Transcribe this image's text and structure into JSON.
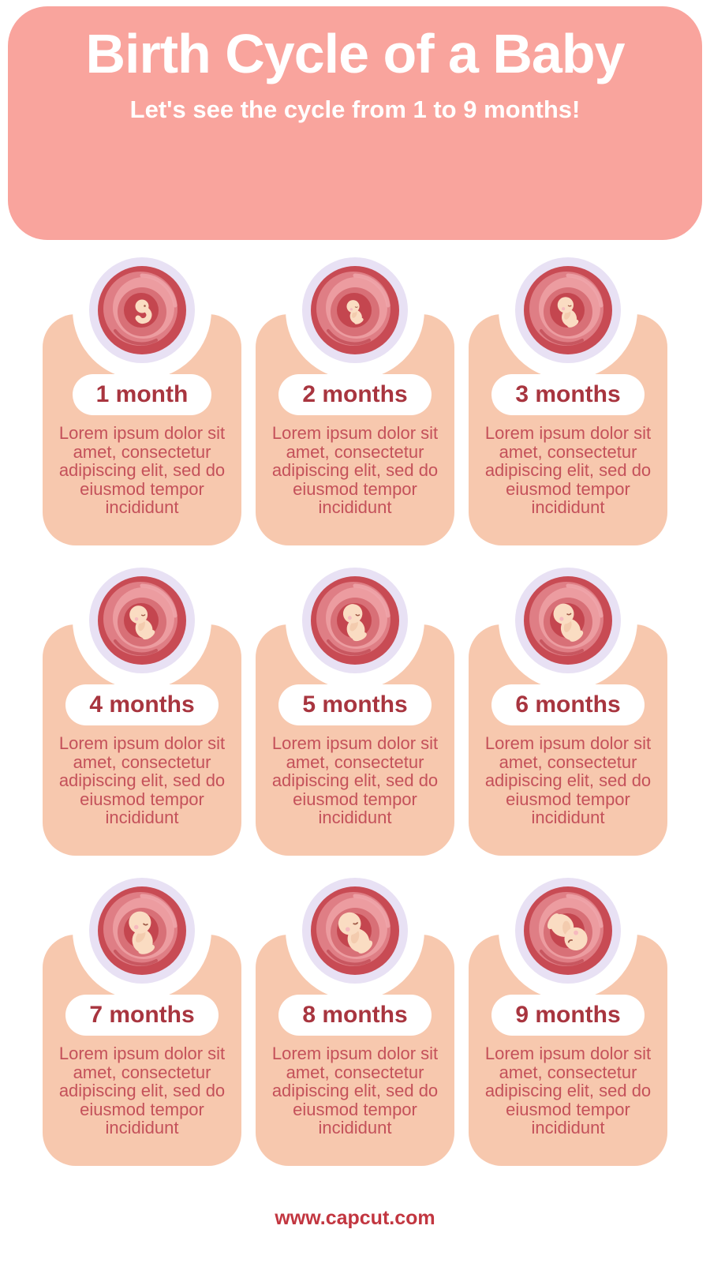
{
  "header": {
    "title": "Birth Cycle of a Baby",
    "subtitle": "Let's see the cycle from 1 to 9 months!"
  },
  "cards": [
    {
      "month": 1,
      "label": "1 month",
      "icon": "embryo-month-1-icon",
      "description": "Lorem ipsum dolor sit amet, consectetur adipiscing elit, sed do eiusmod tempor incididunt"
    },
    {
      "month": 2,
      "label": "2 months",
      "icon": "fetus-month-2-icon",
      "description": "Lorem ipsum dolor sit amet, consectetur adipiscing elit, sed do eiusmod tempor incididunt"
    },
    {
      "month": 3,
      "label": "3 months",
      "icon": "fetus-month-3-icon",
      "description": "Lorem ipsum dolor sit amet, consectetur adipiscing elit, sed do eiusmod tempor incididunt"
    },
    {
      "month": 4,
      "label": "4 months",
      "icon": "fetus-month-4-icon",
      "description": "Lorem ipsum dolor sit amet, consectetur adipiscing elit, sed do eiusmod tempor incididunt"
    },
    {
      "month": 5,
      "label": "5 months",
      "icon": "fetus-month-5-icon",
      "description": "Lorem ipsum dolor sit amet, consectetur adipiscing elit, sed do eiusmod tempor incididunt"
    },
    {
      "month": 6,
      "label": "6 months",
      "icon": "fetus-month-6-icon",
      "description": "Lorem ipsum dolor sit amet, consectetur adipiscing elit, sed do eiusmod tempor incididunt"
    },
    {
      "month": 7,
      "label": "7 months",
      "icon": "fetus-month-7-icon",
      "description": "Lorem ipsum dolor sit amet, consectetur adipiscing elit, sed do eiusmod tempor incididunt"
    },
    {
      "month": 8,
      "label": "8 months",
      "icon": "fetus-month-8-icon",
      "description": "Lorem ipsum dolor sit amet, consectetur adipiscing elit, sed do eiusmod tempor incididunt"
    },
    {
      "month": 9,
      "label": "9 months",
      "icon": "fetus-month-9-icon",
      "description": "Lorem ipsum dolor sit amet, consectetur adipiscing elit, sed do eiusmod tempor incididunt"
    }
  ],
  "footer": {
    "url": "www.capcut.com"
  },
  "colors": {
    "page_bg": "#FFFFFF",
    "header_bg": "#F9A49D",
    "header_text": "#FFFFFF",
    "card_bg": "#F7C8AE",
    "ring_bg": "#E8E1F4",
    "label_red": "#A8353F",
    "body_red": "#C4515A",
    "footer_red": "#C23640",
    "womb_outer": "#C84B54",
    "womb_mid": "#DF7E85",
    "womb_light": "#EC9CA0",
    "womb_inner": "#D87077",
    "womb_core": "#C4464F",
    "fetus_skin": "#FADCC2"
  }
}
